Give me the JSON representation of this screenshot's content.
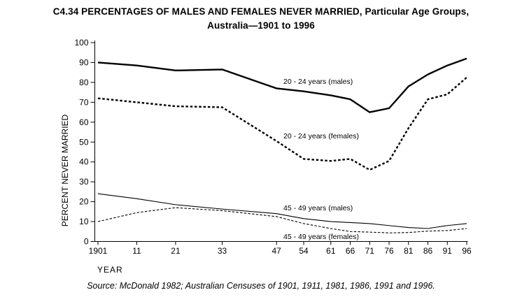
{
  "title": {
    "line1": "C4.34 PERCENTAGES OF MALES AND FEMALES NEVER MARRIED, Particular Age Groups,",
    "line2": "Australia—1901 to 1996"
  },
  "source": "Source: McDonald 1982; Australian Censuses of 1901, 1911, 1981, 1986, 1991 and 1996.",
  "chart_data": {
    "type": "line",
    "title": "C4.34 PERCENTAGES OF MALES AND FEMALES NEVER MARRIED, Particular Age Groups, Australia—1901 to 1996",
    "xlabel": "YEAR",
    "ylabel": "PERCENT NEVER MARRIED",
    "ylim": [
      0,
      100
    ],
    "y_ticks": [
      0,
      10,
      20,
      30,
      40,
      50,
      60,
      70,
      80,
      90,
      100
    ],
    "x": [
      1901,
      1911,
      1921,
      1933,
      1947,
      1954,
      1961,
      1966,
      1971,
      1976,
      1981,
      1986,
      1991,
      1996
    ],
    "x_tick_labels": [
      "1901",
      "11",
      "21",
      "33",
      "47",
      "54",
      "61",
      "66",
      "71",
      "76",
      "81",
      "86",
      "91",
      "96"
    ],
    "grid": false,
    "legend": "inline-labels",
    "line_color": "#000000",
    "series": [
      {
        "name": "20 - 24 years (males)",
        "style": "solid-thick",
        "values": [
          90,
          88.5,
          86,
          86.5,
          77,
          75.5,
          73.5,
          71.5,
          65,
          67,
          78,
          84,
          88.5,
          92
        ]
      },
      {
        "name": "20 - 24 years (females)",
        "style": "dashed-thick",
        "values": [
          72,
          70,
          68,
          67.5,
          50.5,
          41.5,
          40.5,
          41.5,
          36,
          40.5,
          57,
          71.5,
          74,
          82.5
        ]
      },
      {
        "name": "45 - 49 years (males)",
        "style": "solid-thin",
        "values": [
          24,
          21.5,
          18.5,
          16.3,
          14,
          11.5,
          10,
          9.5,
          9,
          8,
          7,
          6.5,
          8,
          9
        ]
      },
      {
        "name": "45 - 49 years (females)",
        "style": "dashed-thin",
        "values": [
          10,
          14.5,
          17,
          15.5,
          12.5,
          9,
          6.5,
          5,
          4.7,
          4.3,
          4.5,
          5.2,
          5.5,
          6.5
        ]
      }
    ]
  }
}
